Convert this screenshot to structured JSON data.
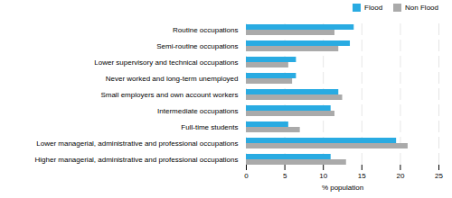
{
  "chart_data": {
    "type": "bar",
    "orientation": "horizontal",
    "categories": [
      "Higher managerial, administrative and professional occupations",
      "Lower managerial, administrative and professional occupations",
      "Full-time students",
      "Intermediate occupations",
      "Small employers and own account workers",
      "Never worked and long-term unemployed",
      "Lower supervisory and technical occupations",
      "Semi-routine occupations",
      "Routine occupations"
    ],
    "series": [
      {
        "name": "Flood",
        "color": "#29ABE2",
        "values": [
          11.0,
          19.5,
          5.5,
          11.0,
          12.0,
          6.5,
          6.5,
          13.5,
          14.0
        ]
      },
      {
        "name": "Non Flood",
        "color": "#AAAAAA",
        "values": [
          13.0,
          21.0,
          7.0,
          11.5,
          12.5,
          6.0,
          5.5,
          12.0,
          11.5
        ]
      }
    ],
    "xlabel": "% population",
    "xlim": [
      0,
      25
    ],
    "xticks": [
      0,
      5,
      10,
      15,
      20,
      25
    ],
    "grid": true,
    "legend": "upper right"
  }
}
